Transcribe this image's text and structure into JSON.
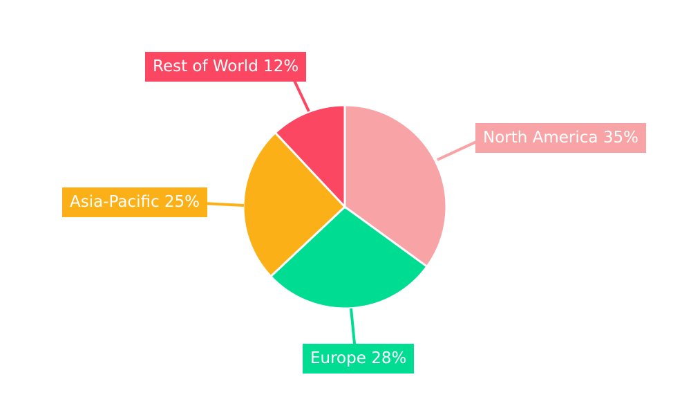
{
  "chart_data": {
    "type": "pie",
    "title": "",
    "categories": [
      "North America",
      "Europe",
      "Asia-Pacific",
      "Rest of World"
    ],
    "values": [
      35,
      28,
      25,
      12
    ],
    "unit": "%",
    "slices": [
      {
        "label": "North America",
        "value": 35,
        "callout_text": "North America 35%",
        "color": "#F8A3A6"
      },
      {
        "label": "Europe",
        "value": 28,
        "callout_text": "Europe 28%",
        "color": "#00DC92"
      },
      {
        "label": "Asia-Pacific",
        "value": 25,
        "callout_text": "Asia-Pacific 25%",
        "color": "#FCB018"
      },
      {
        "label": "Rest of World",
        "value": 12,
        "callout_text": "Rest of World 12%",
        "color": "#FB4762"
      }
    ],
    "start_angle": "12-oclock",
    "direction": "clockwise",
    "legend": "none",
    "background_color": "#FFFFFF",
    "label_text_color": "#FFFFFF",
    "slice_gap_color": "#FFFFFF"
  }
}
